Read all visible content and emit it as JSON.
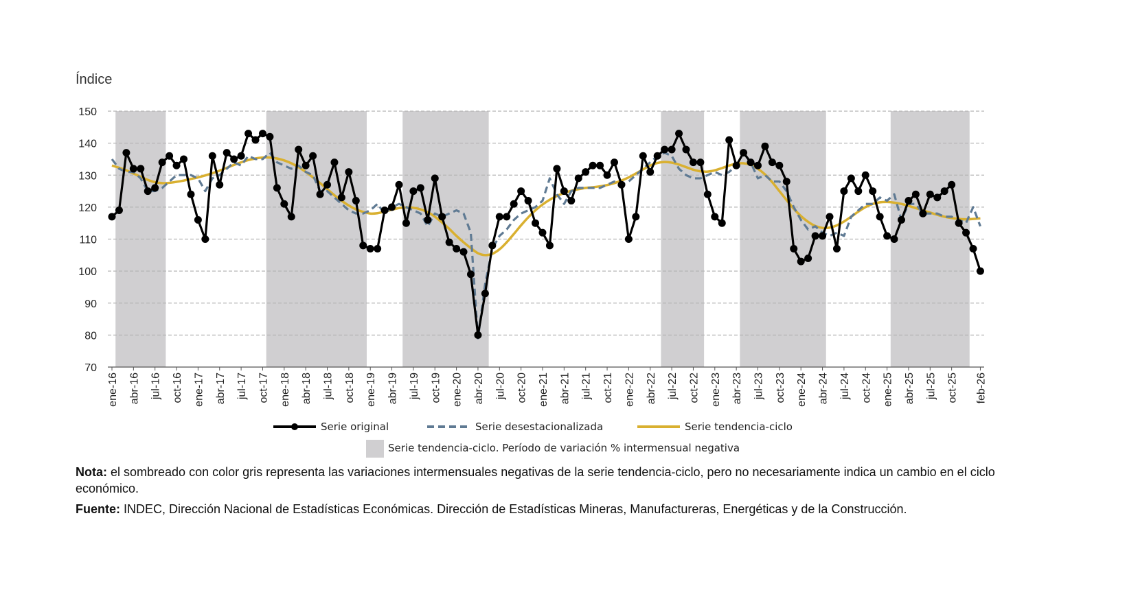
{
  "chart_data": {
    "type": "line",
    "ylabel": "Índice",
    "ylim": [
      70,
      150
    ],
    "yticks": [
      70,
      80,
      90,
      100,
      110,
      120,
      130,
      140,
      150
    ],
    "grid": "horizontal dashed",
    "legend_position": "bottom",
    "categories": [
      "ene-16",
      "feb-16",
      "mar-16",
      "abr-16",
      "may-16",
      "jun-16",
      "jul-16",
      "ago-16",
      "sep-16",
      "oct-16",
      "nov-16",
      "dic-16",
      "ene-17",
      "feb-17",
      "mar-17",
      "abr-17",
      "may-17",
      "jun-17",
      "jul-17",
      "ago-17",
      "sep-17",
      "oct-17",
      "nov-17",
      "dic-17",
      "ene-18",
      "feb-18",
      "mar-18",
      "abr-18",
      "may-18",
      "jun-18",
      "jul-18",
      "ago-18",
      "sep-18",
      "oct-18",
      "nov-18",
      "dic-18",
      "ene-19",
      "feb-19",
      "mar-19",
      "abr-19",
      "may-19",
      "jun-19",
      "jul-19",
      "ago-19",
      "sep-19",
      "oct-19",
      "nov-19",
      "dic-19",
      "ene-20",
      "feb-20",
      "mar-20",
      "abr-20",
      "may-20",
      "jun-20",
      "jul-20",
      "ago-20",
      "sep-20",
      "oct-20",
      "nov-20",
      "dic-20",
      "ene-21",
      "feb-21",
      "mar-21",
      "abr-21",
      "may-21",
      "jun-21",
      "jul-21",
      "ago-21",
      "sep-21",
      "oct-21",
      "nov-21",
      "dic-21",
      "ene-22",
      "feb-22",
      "mar-22",
      "abr-22",
      "may-22",
      "jun-22",
      "jul-22",
      "ago-22",
      "sep-22",
      "oct-22",
      "nov-22",
      "dic-22",
      "ene-23",
      "feb-23",
      "mar-23",
      "abr-23",
      "may-23",
      "jun-23",
      "jul-23",
      "ago-23",
      "sep-23",
      "oct-23",
      "nov-23",
      "dic-23",
      "ene-24",
      "feb-24",
      "mar-24",
      "abr-24",
      "may-24",
      "jun-24",
      "jul-24",
      "ago-24",
      "sep-24",
      "oct-24",
      "nov-24",
      "dic-24",
      "ene-25",
      "feb-25",
      "mar-25",
      "abr-25",
      "may-25",
      "jun-25",
      "jul-25",
      "ago-25",
      "sep-25",
      "oct-25",
      "nov-25",
      "dic-25",
      "ene-26",
      "feb-26"
    ],
    "xtick_labels": [
      "ene-16",
      "abr-16",
      "jul-16",
      "oct-16",
      "ene-17",
      "abr-17",
      "jul-17",
      "oct-17",
      "ene-18",
      "abr-18",
      "jul-18",
      "oct-18",
      "ene-19",
      "abr-19",
      "jul-19",
      "oct-19",
      "ene-20",
      "abr-20",
      "jul-20",
      "oct-20",
      "ene-21",
      "abr-21",
      "jul-21",
      "oct-21",
      "ene-22",
      "abr-22",
      "jul-22",
      "oct-22",
      "ene-23",
      "abr-23",
      "jul-23",
      "oct-23",
      "ene-24",
      "abr-24",
      "jul-24",
      "oct-24",
      "ene-25",
      "abr-25",
      "jul-25",
      "oct-25",
      "feb-26"
    ],
    "series": [
      {
        "name": "Serie original",
        "color": "#000000",
        "style": "solid-markers",
        "values": [
          117,
          119,
          137,
          132,
          132,
          125,
          126,
          134,
          136,
          133,
          135,
          124,
          116,
          110,
          136,
          127,
          137,
          135,
          136,
          143,
          141,
          143,
          142,
          126,
          121,
          117,
          138,
          133,
          136,
          124,
          127,
          134,
          123,
          131,
          122,
          108,
          107,
          107,
          119,
          120,
          127,
          115,
          125,
          126,
          116,
          129,
          117,
          109,
          107,
          106,
          99,
          80,
          93,
          108,
          117,
          117,
          121,
          125,
          122,
          115,
          112,
          108,
          132,
          125,
          122,
          129,
          131,
          133,
          133,
          130,
          134,
          127,
          110,
          117,
          136,
          131,
          136,
          138,
          138,
          143,
          138,
          134,
          134,
          124,
          117,
          115,
          141,
          133,
          137,
          134,
          133,
          139,
          134,
          133,
          128,
          107,
          103,
          104,
          111,
          111,
          117,
          107,
          125,
          129,
          125,
          130,
          125,
          117,
          111,
          110,
          116,
          122,
          124,
          118,
          124,
          123,
          125,
          127,
          115,
          112,
          107,
          100
        ]
      },
      {
        "name": "Serie desestacionalizada",
        "color": "#5f7a93",
        "style": "dashed",
        "values": [
          135,
          132,
          131,
          131,
          129,
          125,
          125,
          126,
          128,
          130,
          130,
          130,
          129,
          125,
          129,
          130,
          132,
          134,
          133,
          136,
          135,
          135,
          137,
          134,
          133,
          132,
          133,
          131,
          130,
          125,
          125,
          123,
          121,
          119,
          118,
          118,
          119,
          121,
          118,
          120,
          121,
          120,
          119,
          118,
          114,
          118,
          117,
          118,
          119,
          118,
          112,
          79,
          96,
          107,
          111,
          113,
          116,
          118,
          119,
          120,
          122,
          129,
          124,
          121,
          125,
          126,
          126,
          126,
          126,
          127,
          128,
          127,
          128,
          130,
          132,
          134,
          136,
          137,
          136,
          132,
          130,
          129,
          129,
          130,
          131,
          130,
          131,
          133,
          137,
          134,
          129,
          130,
          128,
          128,
          125,
          120,
          116,
          113,
          114,
          112,
          111,
          112,
          111,
          117,
          119,
          121,
          121,
          123,
          122,
          124,
          116,
          121,
          121,
          118,
          118,
          118,
          117,
          117,
          116,
          115,
          120,
          114
        ]
      },
      {
        "name": "Serie tendencia-ciclo",
        "color": "#d9b030",
        "style": "solid",
        "values": [
          133,
          132.3,
          131.5,
          130.5,
          129.5,
          128.5,
          127.8,
          127.5,
          127.6,
          127.9,
          128.3,
          128.8,
          129.3,
          129.9,
          130.6,
          131.4,
          132.3,
          133.2,
          134,
          134.7,
          135.2,
          135.5,
          135.5,
          135.2,
          134.6,
          133.7,
          132.5,
          131,
          129.3,
          127.5,
          125.6,
          123.7,
          122,
          120.5,
          119.3,
          118.5,
          118,
          118.1,
          118.6,
          119.2,
          119.7,
          119.9,
          119.8,
          119.3,
          118.4,
          117,
          115.2,
          113.2,
          111,
          109,
          107.2,
          105.6,
          105,
          105.4,
          106.8,
          109,
          111.6,
          114.3,
          116.8,
          119,
          120.8,
          122.3,
          123.5,
          124.4,
          125.1,
          125.6,
          126,
          126.2,
          126.5,
          126.9,
          127.5,
          128.3,
          129.3,
          130.5,
          131.8,
          133,
          133.8,
          134.1,
          133.9,
          133.3,
          132.5,
          131.7,
          131.2,
          131.1,
          131.5,
          132.2,
          133,
          133.6,
          133.7,
          133.2,
          132,
          130.2,
          127.8,
          125,
          122.2,
          119.5,
          117.2,
          115.4,
          114.1,
          113.5,
          113.6,
          114.3,
          115.5,
          117,
          118.6,
          120,
          121,
          121.5,
          121.6,
          121.4,
          121,
          120.4,
          119.7,
          119,
          118.3,
          117.6,
          117,
          116.6,
          116.3,
          116.2,
          116.3,
          116.5
        ]
      }
    ],
    "shaded_periods": {
      "label": "Serie tendencia-ciclo. Período de variación % intermensual negativa",
      "color": "#d0cfd1",
      "ranges": [
        [
          "feb-16",
          "ago-16"
        ],
        [
          "nov-17",
          "dic-18"
        ],
        [
          "jun-19",
          "may-20"
        ],
        [
          "jun-22",
          "nov-22"
        ],
        [
          "may-23",
          "abr-24"
        ],
        [
          "feb-25",
          "dic-25"
        ]
      ]
    }
  },
  "notes": {
    "nota_label": "Nota:",
    "nota_text": " el sombreado con color gris representa las variaciones intermensuales negativas de la serie tendencia-ciclo, pero no necesariamente indica un cambio en el ciclo económico.",
    "fuente_label": "Fuente:",
    "fuente_text": " INDEC, Dirección Nacional de Estadísticas Económicas. Dirección de Estadísticas Mineras, Manufactureras, Energéticas y de la Construcción."
  }
}
